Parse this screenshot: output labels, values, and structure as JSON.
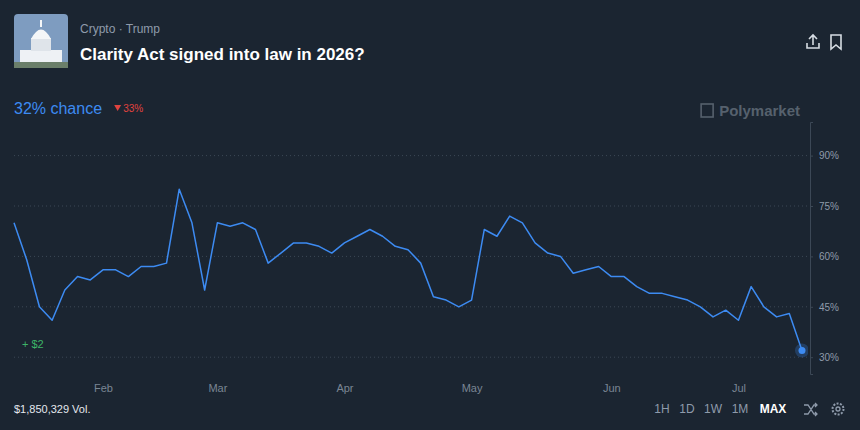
{
  "header": {
    "probability": "32% chance",
    "change": "33%"
  },
  "watermark": "Polymarket",
  "footer": {
    "volume": "$1,850,329 Vol.",
    "ranges": [
      "1H",
      "1D",
      "1W",
      "1M",
      "MAX"
    ],
    "selected": "MAX"
  },
  "chart_data": {
    "type": "line",
    "title": "Clarity Act signed into law in 2026?",
    "subtitle": "Crypto · Trump",
    "annotations": [
      "+ $2"
    ],
    "color": "#3d8bf2",
    "grid": true,
    "categories": [
      null,
      null,
      null,
      null,
      null,
      null,
      null,
      "Feb",
      null,
      null,
      null,
      null,
      null,
      null,
      null,
      null,
      "Mar",
      null,
      null,
      null,
      null,
      null,
      null,
      null,
      null,
      null,
      "Apr",
      null,
      null,
      null,
      null,
      null,
      null,
      null,
      null,
      null,
      "May",
      null,
      null,
      null,
      null,
      null,
      null,
      null,
      null,
      null,
      null,
      "Jun",
      null,
      null,
      null,
      null,
      null,
      null,
      null,
      null,
      null,
      "Jul",
      null,
      null,
      null,
      null,
      null
    ],
    "values": [
      70,
      59,
      45,
      41,
      50,
      54,
      53,
      56,
      56,
      54,
      57,
      57,
      58,
      80,
      70,
      50,
      70,
      69,
      70,
      68,
      58,
      61,
      64,
      64,
      63,
      61,
      64,
      66,
      68,
      66,
      63,
      62,
      58,
      48,
      47,
      45,
      47,
      68,
      66,
      72,
      70,
      64,
      61,
      60,
      55,
      56,
      57,
      54,
      54,
      51,
      49,
      49,
      48,
      47,
      45,
      42,
      44,
      41,
      51,
      45,
      42,
      43,
      32
    ],
    "ylim": [
      25,
      100
    ],
    "yticks": [
      {
        "value": 30,
        "label": "30%"
      },
      {
        "value": 45,
        "label": "45%"
      },
      {
        "value": 60,
        "label": "60%"
      },
      {
        "value": 75,
        "label": "75%"
      },
      {
        "value": 90,
        "label": "90%"
      }
    ]
  }
}
